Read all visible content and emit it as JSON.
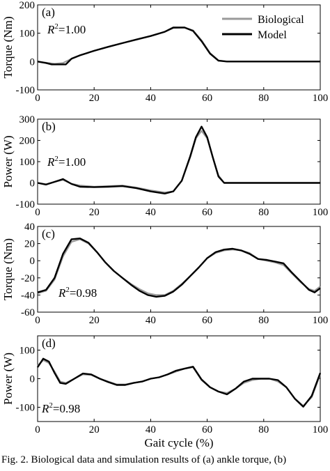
{
  "legend": {
    "items": [
      "Biological",
      "Model"
    ],
    "colors": [
      "#9a9a9a",
      "#000000"
    ]
  },
  "xlabel": "Gait cycle (%)",
  "caption": "Fig. 2.  Biological data and simulation results of (a) ankle torque, (b)",
  "chart_data": [
    {
      "type": "line",
      "panel_label": "(a)",
      "ylabel": "Torque (Nm)",
      "r2_label": "R",
      "r2_value": "=1.00",
      "xlim": [
        0,
        100
      ],
      "ylim": [
        -100,
        200
      ],
      "yticks": [
        -100,
        0,
        100,
        200
      ],
      "xticks": [
        0,
        20,
        40,
        60,
        80,
        100
      ],
      "xtick_labels": [
        "0",
        "20",
        "40",
        "60",
        "80",
        "100"
      ],
      "series": [
        {
          "name": "Biological",
          "x": [
            0,
            3,
            6,
            9,
            12,
            15,
            20,
            25,
            30,
            35,
            40,
            45,
            48,
            52,
            55,
            58,
            61,
            64,
            67,
            70,
            80,
            90,
            100
          ],
          "y": [
            0,
            -4,
            -8,
            -5,
            10,
            22,
            38,
            52,
            65,
            77,
            90,
            105,
            118,
            120,
            110,
            75,
            30,
            4,
            0,
            0,
            0,
            0,
            0
          ]
        },
        {
          "name": "Model",
          "x": [
            0,
            3,
            5,
            10,
            12,
            15,
            20,
            25,
            30,
            35,
            40,
            45,
            48,
            52,
            55,
            58,
            61,
            64,
            67,
            70,
            80,
            90,
            100
          ],
          "y": [
            0,
            -5,
            -10,
            -10,
            10,
            22,
            38,
            52,
            65,
            78,
            90,
            105,
            120,
            120,
            108,
            72,
            28,
            3,
            0,
            0,
            0,
            0,
            0
          ]
        }
      ]
    },
    {
      "type": "line",
      "panel_label": "(b)",
      "ylabel": "Power (W)",
      "r2_label": "R",
      "r2_value": "=1.00",
      "xlim": [
        0,
        100
      ],
      "ylim": [
        -100,
        300
      ],
      "yticks": [
        -100,
        0,
        100,
        200,
        300
      ],
      "xticks": [
        0,
        20,
        40,
        60,
        80,
        100
      ],
      "xtick_labels": [
        "0",
        "20",
        "40",
        "60",
        "80",
        "100"
      ],
      "series": [
        {
          "name": "Biological",
          "x": [
            0,
            3,
            6,
            9,
            12,
            15,
            20,
            25,
            30,
            35,
            40,
            45,
            48,
            51,
            54,
            56,
            58,
            60,
            62,
            64,
            66,
            70,
            80,
            90,
            100
          ],
          "y": [
            0,
            -6,
            5,
            14,
            -4,
            -12,
            -18,
            -15,
            -12,
            -22,
            -35,
            -45,
            -40,
            10,
            120,
            210,
            245,
            210,
            120,
            35,
            0,
            0,
            0,
            0,
            0
          ]
        },
        {
          "name": "Model",
          "x": [
            0,
            3,
            6,
            9,
            12,
            15,
            20,
            25,
            30,
            35,
            40,
            45,
            48,
            51,
            54,
            56,
            58,
            60,
            62,
            64,
            66,
            70,
            80,
            90,
            100
          ],
          "y": [
            0,
            -8,
            5,
            18,
            -5,
            -18,
            -20,
            -18,
            -15,
            -25,
            -40,
            -50,
            -40,
            10,
            125,
            215,
            265,
            215,
            120,
            30,
            0,
            0,
            0,
            0,
            0
          ]
        }
      ]
    },
    {
      "type": "line",
      "panel_label": "(c)",
      "ylabel": "Torque (Nm)",
      "r2_label": "R",
      "r2_value": "=0.98",
      "xlim": [
        0,
        100
      ],
      "ylim": [
        -60,
        40
      ],
      "yticks": [
        -60,
        -40,
        -20,
        0,
        20,
        40
      ],
      "xticks": [
        0,
        20,
        40,
        60,
        80,
        100
      ],
      "xtick_labels": [
        "0",
        "20",
        "40",
        "60",
        "80",
        "100"
      ],
      "series": [
        {
          "name": "Biological",
          "x": [
            0,
            3,
            6,
            9,
            12,
            15,
            18,
            21,
            24,
            27,
            30,
            33,
            36,
            39,
            42,
            45,
            48,
            51,
            54,
            57,
            60,
            63,
            66,
            69,
            72,
            75,
            78,
            81,
            84,
            87,
            90,
            93,
            96,
            98,
            100
          ],
          "y": [
            -38,
            -35,
            -22,
            5,
            22,
            25,
            20,
            10,
            -2,
            -12,
            -20,
            -27,
            -33,
            -38,
            -40,
            -40,
            -35,
            -27,
            -18,
            -8,
            3,
            9,
            12,
            13,
            12,
            9,
            2,
            0,
            -2,
            -5,
            -15,
            -25,
            -33,
            -35,
            -30
          ]
        },
        {
          "name": "Model",
          "x": [
            0,
            3,
            6,
            9,
            12,
            15,
            18,
            21,
            24,
            27,
            30,
            33,
            36,
            39,
            42,
            45,
            48,
            51,
            54,
            57,
            60,
            63,
            66,
            69,
            72,
            75,
            78,
            81,
            84,
            87,
            90,
            93,
            96,
            98,
            100
          ],
          "y": [
            -37,
            -34,
            -20,
            8,
            25,
            26,
            21,
            10,
            -2,
            -12,
            -20,
            -28,
            -35,
            -40,
            -42,
            -41,
            -36,
            -28,
            -18,
            -8,
            3,
            10,
            13,
            14,
            12,
            8,
            2,
            1,
            -1,
            -3,
            -14,
            -24,
            -34,
            -37,
            -32
          ]
        }
      ]
    },
    {
      "type": "line",
      "panel_label": "(d)",
      "ylabel": "Power (W)",
      "r2_label": "R",
      "r2_value": "=0.98",
      "xlim": [
        0,
        100
      ],
      "ylim": [
        -150,
        150
      ],
      "yticks": [
        -100,
        0,
        100
      ],
      "xticks": [
        0,
        20,
        40,
        60,
        80,
        100
      ],
      "xtick_labels": [
        "0",
        "20",
        "40",
        "60",
        "80",
        "100"
      ],
      "series": [
        {
          "name": "Biological",
          "x": [
            0,
            2,
            4,
            6,
            8,
            10,
            13,
            16,
            19,
            22,
            25,
            28,
            31,
            34,
            37,
            40,
            43,
            46,
            49,
            52,
            55,
            58,
            61,
            64,
            67,
            70,
            73,
            76,
            79,
            82,
            85,
            88,
            91,
            94,
            97,
            100
          ],
          "y": [
            45,
            65,
            55,
            25,
            -10,
            -15,
            0,
            15,
            13,
            0,
            -10,
            -20,
            -20,
            -15,
            -10,
            0,
            5,
            15,
            25,
            35,
            40,
            -5,
            -30,
            -45,
            -50,
            -35,
            -15,
            -5,
            0,
            0,
            -10,
            -30,
            -70,
            -95,
            -65,
            15
          ]
        },
        {
          "name": "Model",
          "x": [
            0,
            2,
            4,
            6,
            8,
            10,
            13,
            16,
            19,
            22,
            25,
            28,
            31,
            34,
            37,
            40,
            43,
            46,
            49,
            52,
            55,
            58,
            61,
            64,
            67,
            70,
            73,
            76,
            79,
            82,
            85,
            88,
            91,
            94,
            97,
            100
          ],
          "y": [
            40,
            70,
            60,
            20,
            -15,
            -18,
            0,
            18,
            15,
            0,
            -12,
            -22,
            -22,
            -15,
            -10,
            0,
            5,
            15,
            28,
            35,
            42,
            -3,
            -30,
            -45,
            -55,
            -35,
            -10,
            0,
            0,
            0,
            -5,
            -30,
            -70,
            -98,
            -60,
            20
          ]
        }
      ]
    }
  ]
}
